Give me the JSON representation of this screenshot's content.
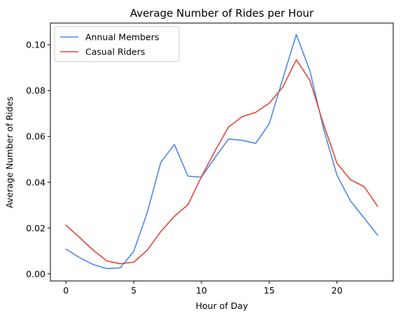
{
  "chart_data": {
    "type": "line",
    "title": "Average Number of Rides per Hour",
    "xlabel": "Hour of Day",
    "ylabel": "Average Number of Rides",
    "xlim": [
      -1.15,
      24.15
    ],
    "ylim": [
      -0.0031,
      0.1095
    ],
    "xticks": [
      0,
      5,
      10,
      15,
      20
    ],
    "yticks": [
      0.0,
      0.02,
      0.04,
      0.06,
      0.08,
      0.1
    ],
    "ytick_labels": [
      "0.00",
      "0.02",
      "0.04",
      "0.06",
      "0.08",
      "0.10"
    ],
    "grid": false,
    "legend_position": "top-left",
    "x": [
      0,
      1,
      2,
      3,
      4,
      5,
      6,
      7,
      8,
      9,
      10,
      11,
      12,
      13,
      14,
      15,
      16,
      17,
      18,
      19,
      20,
      21,
      22,
      23
    ],
    "series": [
      {
        "name": "Annual Members",
        "color": "#4c8ae6",
        "values": [
          0.0108,
          0.0071,
          0.0041,
          0.0023,
          0.0026,
          0.0098,
          0.0268,
          0.0487,
          0.0565,
          0.0427,
          0.0422,
          0.0508,
          0.0589,
          0.0583,
          0.057,
          0.0655,
          0.0852,
          0.1045,
          0.0887,
          0.0635,
          0.0431,
          0.0318,
          0.0244,
          0.0169
        ]
      },
      {
        "name": "Casual Riders",
        "color": "#e0473a",
        "values": [
          0.0213,
          0.0159,
          0.0104,
          0.0057,
          0.0044,
          0.0051,
          0.0103,
          0.0185,
          0.0251,
          0.0302,
          0.0424,
          0.0537,
          0.0641,
          0.0686,
          0.0705,
          0.0745,
          0.0815,
          0.0935,
          0.0845,
          0.0655,
          0.0483,
          0.0411,
          0.0381,
          0.0295
        ]
      }
    ]
  }
}
